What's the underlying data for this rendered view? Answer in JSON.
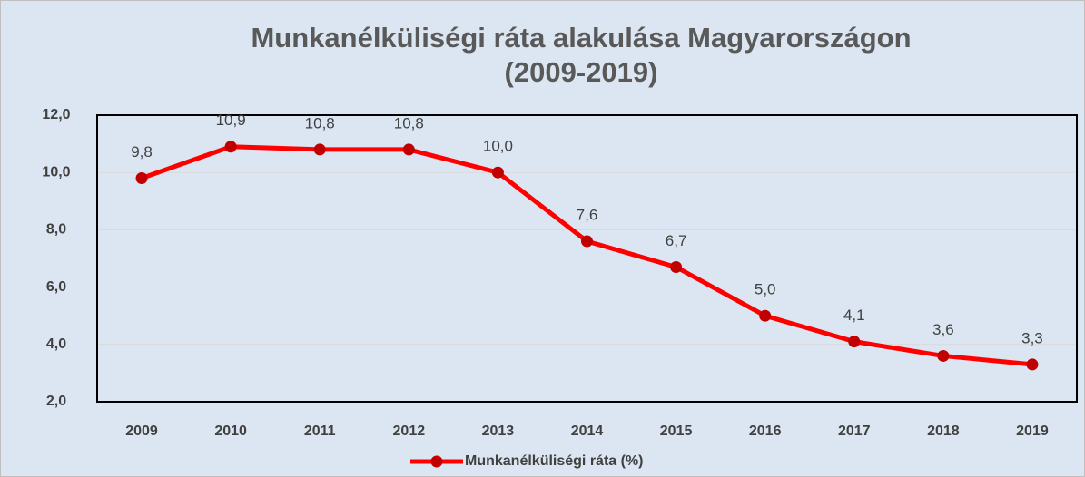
{
  "chart_data": {
    "type": "line",
    "title": [
      "Munkanélküliségi ráta alakulása Magyarországon",
      "(2009-2019)"
    ],
    "categories": [
      "2009",
      "2010",
      "2011",
      "2012",
      "2013",
      "2014",
      "2015",
      "2016",
      "2017",
      "2018",
      "2019"
    ],
    "series": [
      {
        "name": "Munkanélküliségi ráta (%)",
        "color": "#ff0000",
        "marker_color": "#c00000",
        "values": [
          9.8,
          10.9,
          10.8,
          10.8,
          10.0,
          7.6,
          6.7,
          5.0,
          4.1,
          3.6,
          3.3
        ],
        "value_labels": [
          "9,8",
          "10,9",
          "10,8",
          "10,8",
          "10,0",
          "7,6",
          "6,7",
          "5,0",
          "4,1",
          "3,6",
          "3,3"
        ]
      }
    ],
    "ylim": [
      2,
      12
    ],
    "yticks": [
      {
        "value": 2,
        "label": "2,0"
      },
      {
        "value": 4,
        "label": "4,0"
      },
      {
        "value": 6,
        "label": "6,0"
      },
      {
        "value": 8,
        "label": "8,0"
      },
      {
        "value": 10,
        "label": "10,0"
      },
      {
        "value": 12,
        "label": "12,0"
      }
    ],
    "grid": true,
    "legend": "bottom"
  }
}
